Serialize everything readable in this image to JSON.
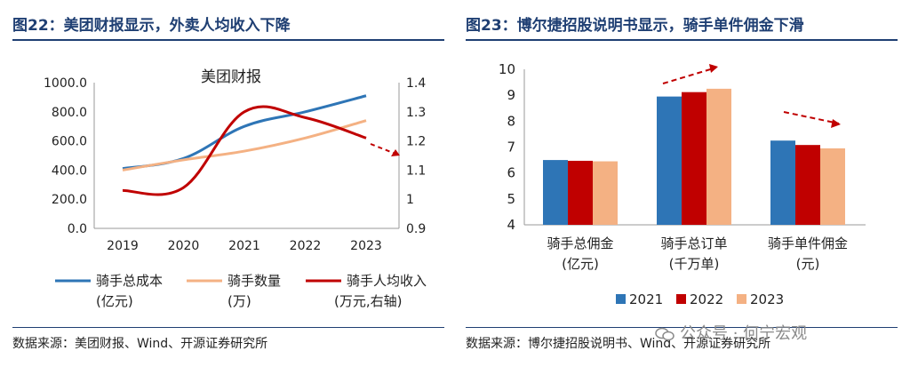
{
  "left_panel": {
    "figure_title": "图22：美团财报显示，外卖人均收入下降",
    "source": "数据来源：美团财报、Wind、开源证券研究所"
  },
  "right_panel": {
    "figure_title": "图23：博尔捷招股说明书显示，骑手单件佣金下滑",
    "source": "数据来源：博尔捷招股说明书、Wind、开源证券研究所"
  },
  "watermark": {
    "text": "公众号 · 何宁宏观",
    "icon": "wechat-icon"
  },
  "colors": {
    "blue": "#2e75b6",
    "peach": "#f4b183",
    "red": "#c00000",
    "navy": "#1f3f73"
  },
  "chart_data": [
    {
      "type": "line",
      "title": "美团财报",
      "x": [
        "2019",
        "2020",
        "2021",
        "2022",
        "2023"
      ],
      "ylim_left": [
        0,
        1000
      ],
      "yticks_left": [
        "0.0",
        "200.0",
        "400.0",
        "600.0",
        "800.0",
        "1000.0"
      ],
      "ylim_right": [
        0.9,
        1.4
      ],
      "yticks_right": [
        "0.9",
        "1",
        "1.1",
        "1.2",
        "1.3",
        "1.4"
      ],
      "grid": false,
      "legend_position": "bottom",
      "series": [
        {
          "name": "骑手总成本",
          "unit": "(亿元)",
          "axis": "left",
          "color": "#2e75b6",
          "values": [
            410,
            480,
            700,
            800,
            910
          ]
        },
        {
          "name": "骑手数量",
          "unit": "(万)",
          "axis": "left",
          "color": "#f4b183",
          "values": [
            400,
            470,
            530,
            620,
            740
          ]
        },
        {
          "name": "骑手人均收入",
          "unit": "(万元,右轴)",
          "axis": "right",
          "color": "#c00000",
          "values": [
            1.03,
            1.04,
            1.3,
            1.28,
            1.21
          ]
        }
      ],
      "annotations": [
        "dashed red arrow pointing down-right after 2023"
      ]
    },
    {
      "type": "bar",
      "categories": [
        {
          "line1": "骑手总佣金",
          "line2": "(亿元)"
        },
        {
          "line1": "骑手总订单",
          "line2": "(千万单)"
        },
        {
          "line1": "骑手单件佣金",
          "line2": "(元)"
        }
      ],
      "ylim": [
        4,
        10
      ],
      "yticks": [
        "4",
        "5",
        "6",
        "7",
        "8",
        "9",
        "10"
      ],
      "grid": false,
      "legend_position": "bottom",
      "series": [
        {
          "name": "2021",
          "color": "#2e75b6",
          "values": [
            6.5,
            8.95,
            7.25
          ]
        },
        {
          "name": "2022",
          "color": "#c00000",
          "values": [
            6.47,
            9.12,
            7.08
          ]
        },
        {
          "name": "2023",
          "color": "#f4b183",
          "values": [
            6.45,
            9.25,
            6.95
          ]
        }
      ],
      "annotations": [
        "dashed red arrows pointing up-right over 骑手总订单",
        "dashed red arrow pointing down-right over 骑手单件佣金"
      ]
    }
  ]
}
